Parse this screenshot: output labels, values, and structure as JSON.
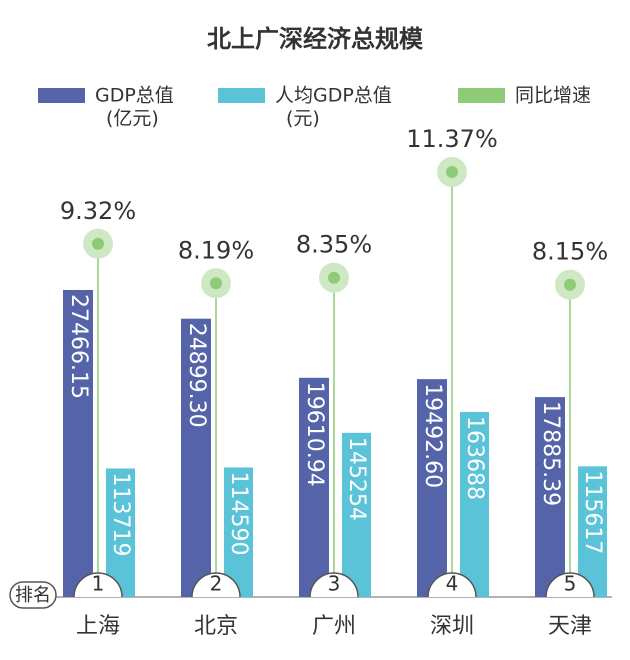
{
  "chart_data": {
    "type": "bar_lollipop",
    "title": "北上广深经济总规模",
    "categories": [
      "上海",
      "北京",
      "广州",
      "深圳",
      "天津"
    ],
    "rank_label": "排名",
    "ranks": [
      1,
      2,
      3,
      4,
      5
    ],
    "series": [
      {
        "name": "GDP总值",
        "unit": "(亿元)",
        "color": "#5563a8",
        "values": [
          27466.15,
          24899.3,
          19610.94,
          19492.6,
          17885.39
        ],
        "value_labels": [
          "27466.15",
          "24899.30",
          "19610.94",
          "19492.60",
          "17885.39"
        ]
      },
      {
        "name": "人均GDP总值",
        "unit": "(元)",
        "color": "#5bc3d8",
        "values": [
          113719,
          114590,
          145254,
          163688,
          115617
        ]
      },
      {
        "name": "同比增速",
        "color": "#8dcb76",
        "values": [
          9.32,
          8.19,
          8.35,
          11.37,
          8.15
        ],
        "value_labels": [
          "9.32%",
          "8.19%",
          "8.35%",
          "11.37%",
          "8.15%"
        ]
      }
    ]
  }
}
